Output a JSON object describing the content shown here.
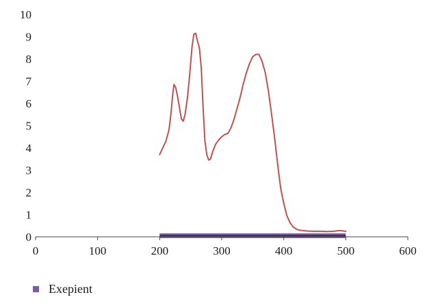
{
  "chart_data": {
    "type": "line",
    "xlim": [
      0,
      600
    ],
    "ylim": [
      0,
      10
    ],
    "xticks": [
      "0",
      "100",
      "200",
      "300",
      "400",
      "500",
      "600"
    ],
    "yticks": [
      "0",
      "1",
      "2",
      "3",
      "4",
      "5",
      "6",
      "7",
      "8",
      "9",
      "10"
    ],
    "grid": false,
    "legend_placement": "bottom-left",
    "series": [
      {
        "color": "#c0504d",
        "x": [
          200,
          205,
          210,
          215,
          218,
          221,
          223,
          226,
          229,
          232,
          235,
          238,
          241,
          245,
          249,
          252,
          255,
          258,
          261,
          264,
          267,
          270,
          273,
          276,
          279,
          282,
          285,
          290,
          295,
          300,
          305,
          310,
          315,
          320,
          325,
          330,
          335,
          340,
          345,
          350,
          355,
          360,
          365,
          370,
          375,
          380,
          385,
          390,
          395,
          400,
          405,
          410,
          415,
          420,
          425,
          430,
          440,
          450,
          460,
          470,
          480,
          490,
          500
        ],
        "y": [
          3.7,
          4.0,
          4.3,
          4.8,
          5.5,
          6.4,
          6.85,
          6.7,
          6.3,
          5.8,
          5.3,
          5.2,
          5.5,
          6.3,
          7.5,
          8.5,
          9.1,
          9.15,
          8.8,
          8.5,
          7.6,
          5.8,
          4.3,
          3.7,
          3.45,
          3.5,
          3.8,
          4.15,
          4.35,
          4.5,
          4.6,
          4.65,
          4.9,
          5.3,
          5.8,
          6.3,
          6.9,
          7.4,
          7.8,
          8.1,
          8.2,
          8.2,
          7.9,
          7.4,
          6.6,
          5.6,
          4.5,
          3.3,
          2.2,
          1.5,
          0.95,
          0.65,
          0.45,
          0.35,
          0.3,
          0.28,
          0.26,
          0.25,
          0.25,
          0.24,
          0.25,
          0.28,
          0.25
        ]
      },
      {
        "name": "Exepient",
        "color": "#7b5ea7",
        "x": [
          200,
          250,
          300,
          350,
          400,
          450,
          500
        ],
        "y": [
          0.05,
          0.05,
          0.05,
          0.05,
          0.05,
          0.05,
          0.05
        ]
      }
    ],
    "legend": [
      "Exepient"
    ]
  }
}
